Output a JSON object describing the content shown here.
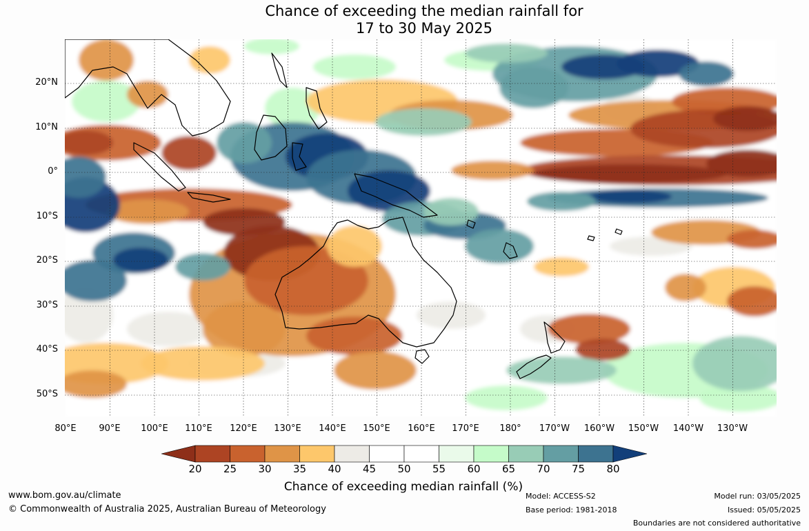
{
  "title_line1": "Chance of exceeding the median rainfall for",
  "title_line2": "17 to 30 May 2025",
  "lat_labels": [
    "20°N",
    "10°N",
    "0°",
    "10°S",
    "20°S",
    "30°S",
    "40°S",
    "50°S"
  ],
  "lon_labels": [
    "80°E",
    "90°E",
    "100°E",
    "110°E",
    "120°E",
    "130°E",
    "140°E",
    "150°E",
    "160°E",
    "170°E",
    "180°",
    "170°W",
    "160°W",
    "150°W",
    "140°W",
    "130°W"
  ],
  "colorbar": {
    "ticks": [
      "20",
      "25",
      "30",
      "35",
      "40",
      "45",
      "50",
      "55",
      "60",
      "65",
      "70",
      "75",
      "80"
    ],
    "colors": [
      "#8e2f19",
      "#ad4423",
      "#c9622e",
      "#df9447",
      "#fdc76b",
      "#edebe6",
      "#ffffff",
      "#ffffff",
      "#eafaea",
      "#c5fbc9",
      "#98ccb6",
      "#649ea3",
      "#3d7390",
      "#123f7a"
    ],
    "label": "Chance of exceeding median rainfall (%)"
  },
  "footer": {
    "url": "www.bom.gov.au/climate",
    "copyright": "© Commonwealth of Australia 2025, Australian Bureau of Meteorology",
    "model": "Model: ACCESS-S2",
    "base_period": "Base period: 1981-2018",
    "model_run": "Model run: 03/05/2025",
    "issued": "Issued: 05/05/2025",
    "disclaimer": "Boundaries are not considered authoritative"
  }
}
